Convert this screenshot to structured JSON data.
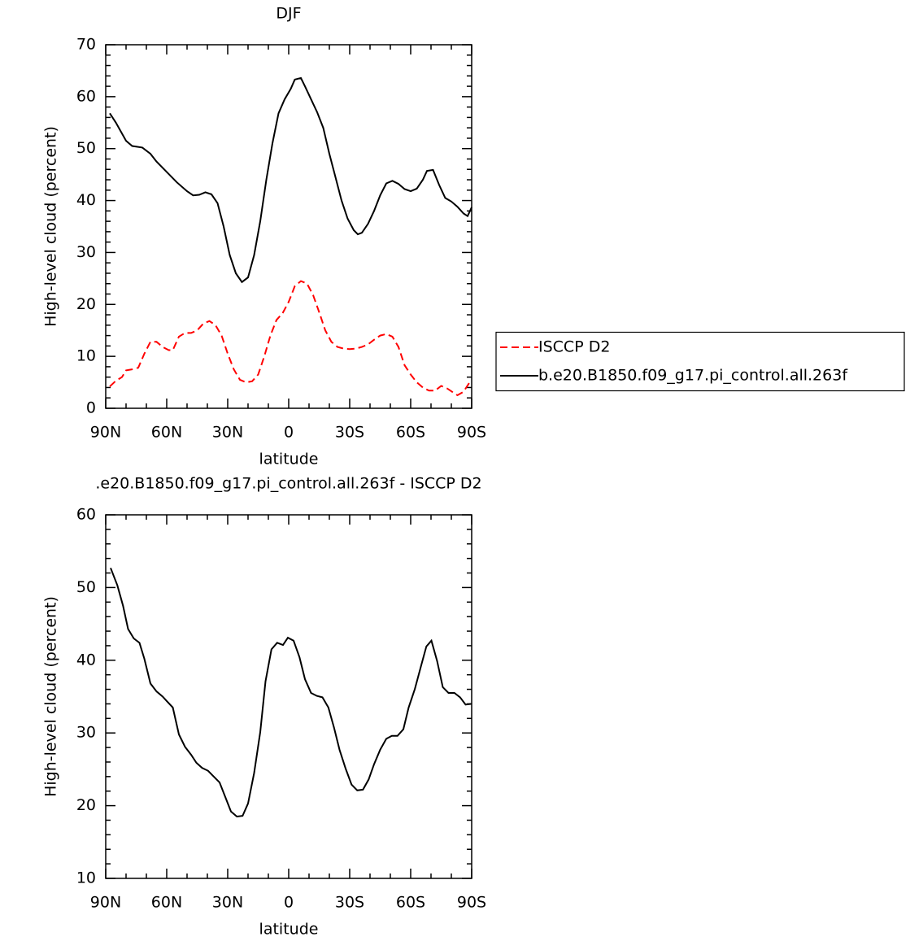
{
  "chart_data": [
    {
      "type": "line",
      "title": "DJF",
      "xlabel": "latitude",
      "ylabel": "High-level cloud (percent)",
      "xlim": [
        90,
        -90
      ],
      "xticks": [
        {
          "value": 90,
          "label": "90N"
        },
        {
          "value": 60,
          "label": "60N"
        },
        {
          "value": 30,
          "label": "30N"
        },
        0,
        {
          "value": -30,
          "label": "30S"
        },
        {
          "value": -60,
          "label": "60S"
        },
        {
          "value": -90,
          "label": "90S"
        }
      ],
      "ylim": [
        0,
        70
      ],
      "yticks": [
        0,
        10,
        20,
        30,
        40,
        50,
        60,
        70
      ],
      "legend": "right",
      "series": [
        {
          "name": "ISCCP D2",
          "color": "#ff0000",
          "dash": "dashed",
          "x": [
            88,
            85,
            82,
            80,
            77,
            74,
            71,
            68,
            65,
            62,
            59,
            57,
            54,
            51,
            48,
            45,
            42,
            39,
            36,
            33,
            30,
            27,
            24,
            21,
            18,
            15,
            12,
            9,
            6,
            3,
            0,
            -3,
            -6,
            -9,
            -12,
            -15,
            -18,
            -21,
            -24,
            -27,
            -30,
            -33,
            -36,
            -39,
            -42,
            -45,
            -48,
            -51,
            -54,
            -57,
            -60,
            -63,
            -66,
            -69,
            -72,
            -75,
            -78,
            -81,
            -83,
            -86,
            -89
          ],
          "values": [
            4.2,
            5.3,
            6,
            7.3,
            7.5,
            7.8,
            10.5,
            12.8,
            12.8,
            11.8,
            11.2,
            11.2,
            13.8,
            14.5,
            14.5,
            15,
            16.3,
            16.8,
            16,
            14,
            10.5,
            7.5,
            5.5,
            5,
            5.2,
            6.5,
            10,
            14,
            17,
            18.3,
            20.5,
            23.5,
            24.5,
            24,
            21.8,
            18.5,
            15,
            12.8,
            11.8,
            11.5,
            11.4,
            11.5,
            11.8,
            12.3,
            13.2,
            14,
            14.3,
            13.8,
            11.8,
            8.3,
            6.5,
            5,
            4,
            3.4,
            3.4,
            4.3,
            3.8,
            3,
            2.5,
            3.2,
            5
          ]
        },
        {
          "name": "b.e20.B1850.f09_g17.pi_control.all.263f",
          "color": "#000000",
          "dash": "solid",
          "x": [
            88,
            85,
            80,
            77,
            72,
            68,
            65,
            60,
            55,
            50,
            47,
            44,
            41,
            38,
            35,
            32,
            29,
            26,
            23,
            20,
            17,
            14,
            11,
            8,
            5,
            2,
            -1,
            -3,
            -6,
            -8,
            -11,
            -14,
            -17,
            -20,
            -23,
            -26,
            -29,
            -32,
            -34,
            -36,
            -39,
            -42,
            -45,
            -48,
            -51,
            -54,
            -57,
            -60,
            -63,
            -66,
            -68,
            -71,
            -74,
            -77,
            -80,
            -83,
            -86,
            -88,
            -90
          ],
          "values": [
            56.8,
            55,
            51.5,
            50.5,
            50.2,
            49,
            47.5,
            45.5,
            43.5,
            41.8,
            41,
            41.1,
            41.6,
            41.2,
            39.5,
            35,
            29.5,
            26,
            24.3,
            25.2,
            29.5,
            36,
            44,
            51,
            56.8,
            59.5,
            61.5,
            63.3,
            63.6,
            62,
            59.5,
            57,
            54,
            49,
            44.5,
            40,
            36.5,
            34.3,
            33.5,
            33.8,
            35.5,
            38,
            41,
            43.3,
            43.8,
            43.2,
            42.2,
            41.8,
            42.3,
            44,
            45.7,
            45.9,
            43,
            40.5,
            39.8,
            38.8,
            37.5,
            37,
            38.7
          ]
        }
      ]
    },
    {
      "type": "line",
      "title": ".e20.B1850.f09_g17.pi_control.all.263f - ISCCP D2",
      "xlabel": "latitude",
      "ylabel": "High-level cloud (percent)",
      "xlim": [
        90,
        -90
      ],
      "xticks": [
        {
          "value": 90,
          "label": "90N"
        },
        {
          "value": 60,
          "label": "60N"
        },
        {
          "value": 30,
          "label": "30N"
        },
        0,
        {
          "value": -30,
          "label": "30S"
        },
        {
          "value": -60,
          "label": "60S"
        },
        {
          "value": -90,
          "label": "90S"
        }
      ],
      "ylim": [
        10,
        60
      ],
      "yticks": [
        10,
        20,
        30,
        40,
        50,
        60
      ],
      "series": [
        {
          "color": "#000000",
          "dash": "solid",
          "x": [
            87.6,
            84.3,
            81.5,
            79,
            76.2,
            73.4,
            71,
            68,
            65,
            62,
            60,
            57,
            54,
            51,
            48,
            45.4,
            42.6,
            39.7,
            36.9,
            34,
            31.2,
            28.4,
            25.5,
            22.7,
            20,
            17,
            14,
            11.4,
            8.5,
            5.7,
            2.8,
            0.4,
            -2.4,
            -5.3,
            -8,
            -11,
            -13.8,
            -16.6,
            -19.5,
            -22.3,
            -25,
            -28,
            -30.9,
            -33.7,
            -36.5,
            -39.3,
            -42,
            -45,
            -48,
            -50.7,
            -53.5,
            -56.4,
            -59,
            -62,
            -65,
            -67.7,
            -70.2,
            -73,
            -75.8,
            -78.6,
            -81.5,
            -84.3,
            -87,
            -90
          ],
          "values": [
            52.7,
            50.3,
            47.5,
            44.3,
            43,
            42.4,
            40.2,
            36.8,
            35.7,
            35,
            34.4,
            33.5,
            29.8,
            28.1,
            27,
            25.9,
            25.2,
            24.8,
            24,
            23.2,
            21.2,
            19.2,
            18.5,
            18.6,
            20.3,
            24.5,
            30.1,
            37.1,
            41.5,
            42.4,
            42.1,
            43.1,
            42.7,
            40.4,
            37.4,
            35.5,
            35.1,
            34.9,
            33.5,
            30.7,
            27.7,
            25.1,
            22.9,
            22.1,
            22.2,
            23.6,
            25.7,
            27.7,
            29.2,
            29.6,
            29.6,
            30.5,
            33.5,
            36,
            39.1,
            41.9,
            42.7,
            39.9,
            36.3,
            35.5,
            35.5,
            34.9,
            33.9,
            34
          ]
        }
      ]
    }
  ]
}
